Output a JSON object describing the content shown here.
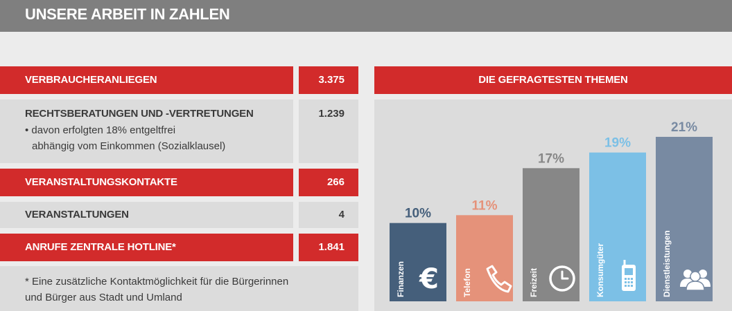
{
  "header": {
    "title": "UNSERE ARBEIT IN ZAHLEN"
  },
  "stats": [
    {
      "label": "VERBRAUCHERANLIEGEN",
      "value": "3.375"
    },
    {
      "label": "RECHTSBERATUNGEN UND -VERTRETUNGEN",
      "value": "1.239",
      "sub_line1": "• davon erfolgten 18% entgeltfrei",
      "sub_line2": "abhängig vom Einkommen (Sozialklausel)"
    },
    {
      "label": "VERANSTALTUNGSKONTAKTE",
      "value": "266"
    },
    {
      "label": "VERANSTALTUNGEN",
      "value": "4"
    },
    {
      "label": "ANRUFE ZENTRALE HOTLINE*",
      "value": "1.841"
    }
  ],
  "footnote": "* Eine zusätzliche Kontaktmöglichkeit für die Bürgerinnen und Bürger aus Stadt und Umland",
  "colors": {
    "red": "#d22b2b",
    "gray_panel": "#dcdcdc",
    "header_gray": "#7f7f7f"
  },
  "chart_data": {
    "type": "bar",
    "title": "DIE GEFRAGTESTEN THEMEN",
    "categories": [
      "Finanzen",
      "Telefon",
      "Freizeit",
      "Konsumgüter",
      "Dienstleistungen"
    ],
    "values": [
      10,
      11,
      17,
      19,
      21
    ],
    "value_labels": [
      "10%",
      "11%",
      "17%",
      "19%",
      "21%"
    ],
    "bar_colors": [
      "#455f7b",
      "#e5927a",
      "#878787",
      "#7cc0e6",
      "#788aa2"
    ],
    "icons": [
      "euro-icon",
      "phone-icon",
      "clock-icon",
      "mobile-phone-icon",
      "people-icon"
    ],
    "ylim": [
      0,
      21
    ]
  }
}
